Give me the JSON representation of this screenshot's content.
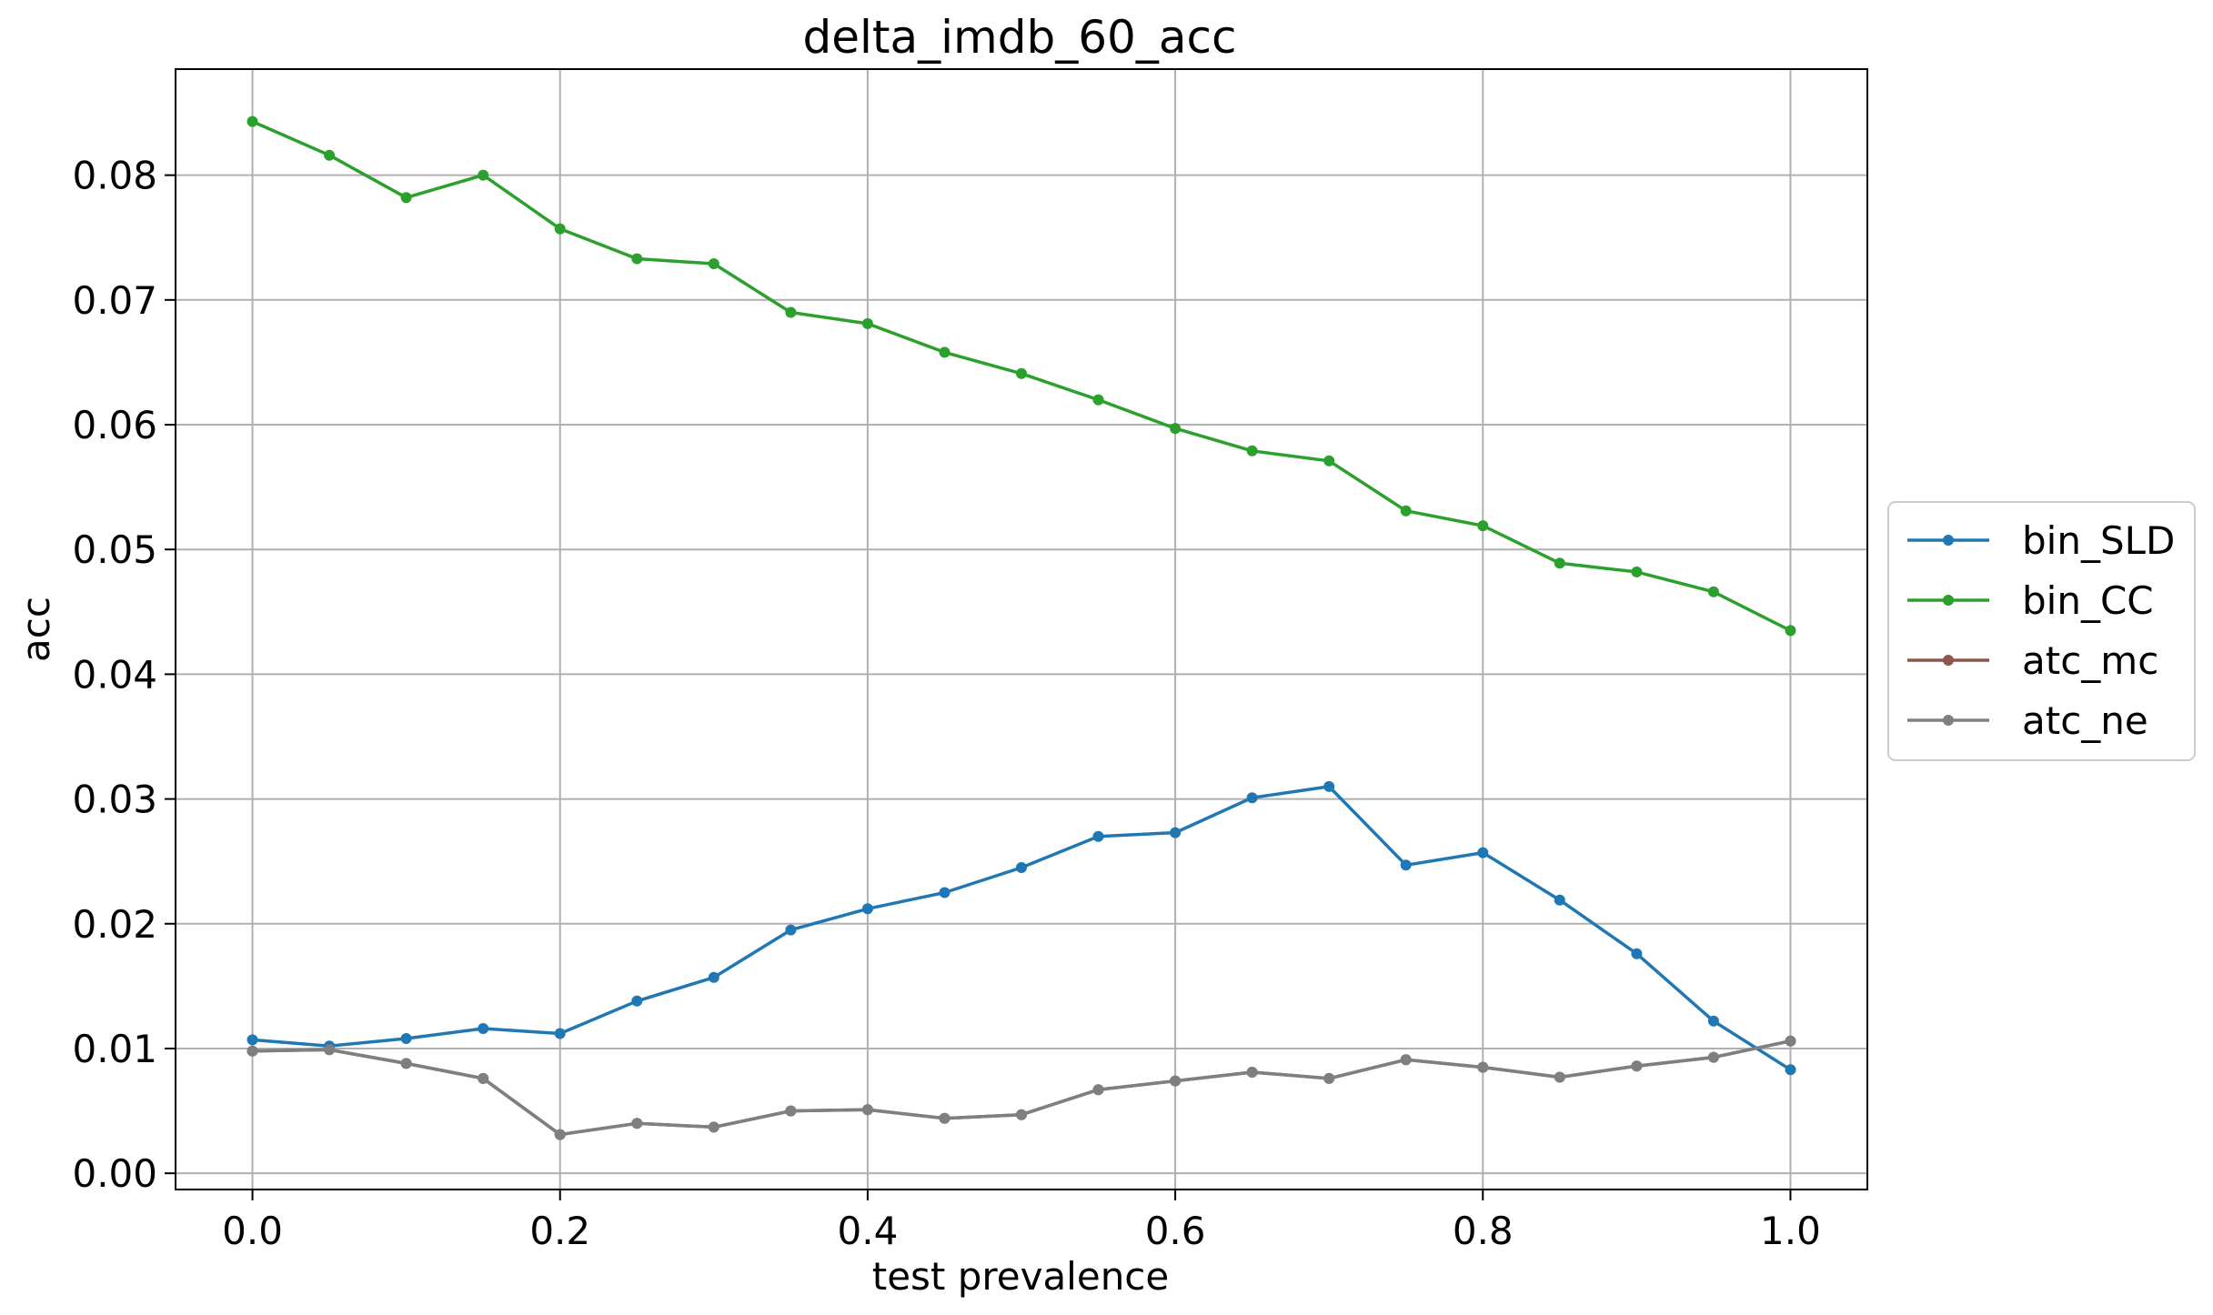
{
  "chart_data": {
    "type": "line",
    "title": "delta_imdb_60_acc",
    "xlabel": "test prevalence",
    "ylabel": "acc",
    "xlim": [
      -0.05,
      1.05
    ],
    "ylim": [
      -0.0013,
      0.0885
    ],
    "grid": true,
    "legend_position": "center-right outside",
    "x": [
      0.0,
      0.05,
      0.1,
      0.15,
      0.2,
      0.25,
      0.3,
      0.35,
      0.4,
      0.45,
      0.5,
      0.55,
      0.6,
      0.65,
      0.7,
      0.75,
      0.8,
      0.85,
      0.9,
      0.95,
      1.0
    ],
    "x_ticks": [
      0.0,
      0.2,
      0.4,
      0.6,
      0.8,
      1.0
    ],
    "x_tick_labels": [
      "0.0",
      "0.2",
      "0.4",
      "0.6",
      "0.8",
      "1.0"
    ],
    "y_ticks": [
      0.0,
      0.01,
      0.02,
      0.03,
      0.04,
      0.05,
      0.06,
      0.07,
      0.08
    ],
    "y_tick_labels": [
      "0.00",
      "0.01",
      "0.02",
      "0.03",
      "0.04",
      "0.05",
      "0.06",
      "0.07",
      "0.08"
    ],
    "series": [
      {
        "name": "bin_SLD",
        "color": "#1f77b4",
        "values": [
          0.0107,
          0.0102,
          0.0108,
          0.0116,
          0.0112,
          0.0138,
          0.0157,
          0.0195,
          0.0212,
          0.0225,
          0.0245,
          0.027,
          0.0273,
          0.0301,
          0.031,
          0.0247,
          0.0257,
          0.0219,
          0.0176,
          0.0122,
          0.0083
        ]
      },
      {
        "name": "bin_CC",
        "color": "#2ca02c",
        "values": [
          0.0843,
          0.0816,
          0.0782,
          0.08,
          0.0757,
          0.0733,
          0.0729,
          0.069,
          0.0681,
          0.0658,
          0.0641,
          0.062,
          0.0597,
          0.0579,
          0.0571,
          0.0531,
          0.0519,
          0.0489,
          0.0482,
          0.0466,
          0.0435
        ]
      },
      {
        "name": "atc_mc",
        "color": "#8c564b",
        "values": [
          0.0098,
          0.0099,
          0.0088,
          0.0076,
          0.0031,
          0.004,
          0.0037,
          0.005,
          0.0051,
          0.0044,
          0.0047,
          0.0067,
          0.0074,
          0.0081,
          0.0076,
          0.0091,
          0.0085,
          0.0077,
          0.0086,
          0.0093,
          0.0106
        ]
      },
      {
        "name": "atc_ne",
        "color": "#7f7f7f",
        "values": [
          0.0098,
          0.0099,
          0.0088,
          0.0076,
          0.0031,
          0.004,
          0.0037,
          0.005,
          0.0051,
          0.0044,
          0.0047,
          0.0067,
          0.0074,
          0.0081,
          0.0076,
          0.0091,
          0.0085,
          0.0077,
          0.0086,
          0.0093,
          0.0106
        ]
      }
    ]
  }
}
